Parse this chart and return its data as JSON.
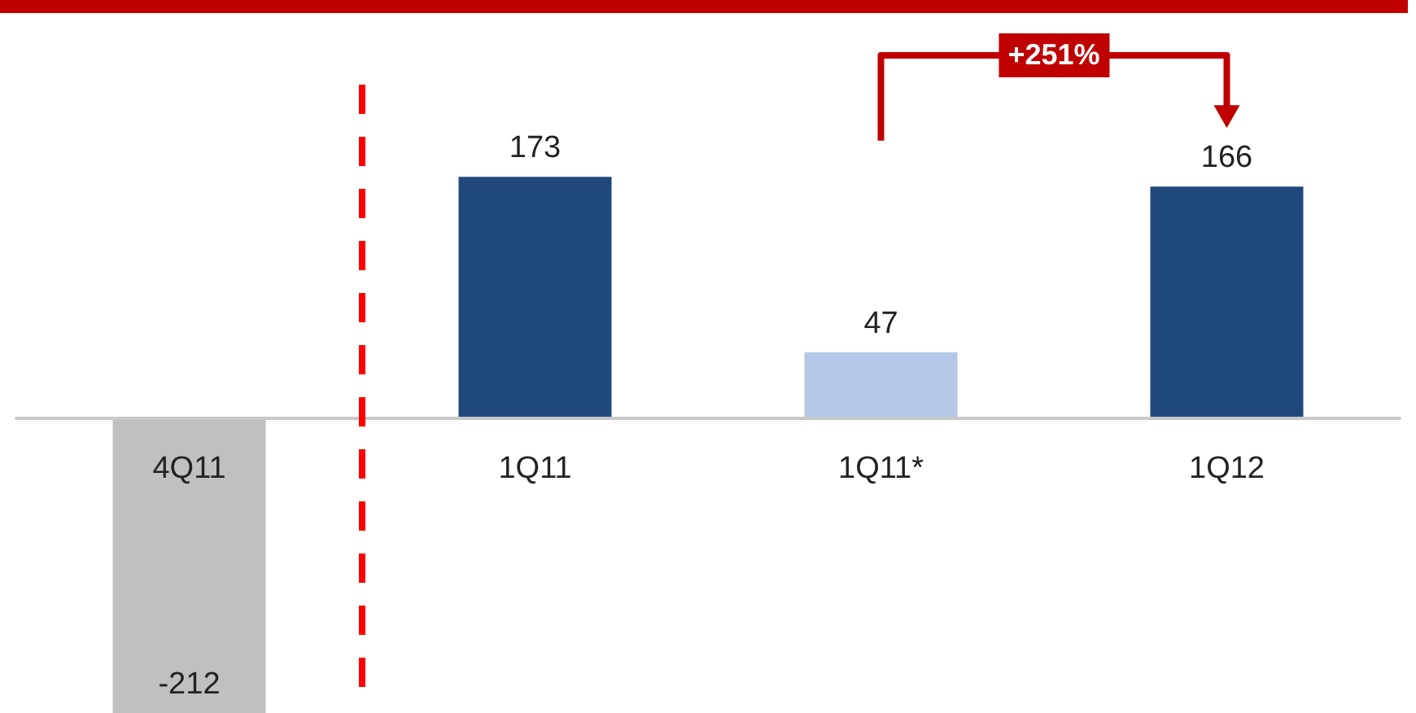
{
  "chart_data": {
    "type": "bar",
    "categories": [
      "4Q11",
      "1Q11",
      "1Q11*",
      "1Q12"
    ],
    "values": [
      -212,
      173,
      47,
      166
    ],
    "colors": [
      "#c0c0c0",
      "#1f497d",
      "#b4c7e7",
      "#1f497d"
    ],
    "ylim": [
      -212,
      300
    ],
    "data_labels": true,
    "grid": false,
    "annotations": [
      "+251%"
    ]
  }
}
